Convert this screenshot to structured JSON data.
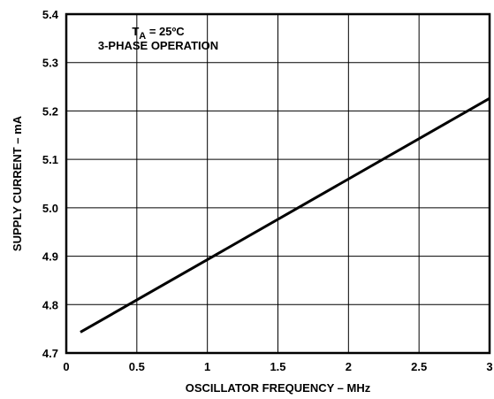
{
  "chart_data": {
    "type": "line",
    "title": "",
    "xlabel": "OSCILLATOR FREQUENCY – MHz",
    "ylabel": "SUPPLY CURRENT – mA",
    "xlim": [
      0,
      3
    ],
    "ylim": [
      4.7,
      5.4
    ],
    "x_ticks": [
      "0",
      "0.5",
      "1",
      "1.5",
      "2",
      "2.5",
      "3"
    ],
    "y_ticks": [
      "4.7",
      "4.8",
      "4.9",
      "5.0",
      "5.1",
      "5.2",
      "5.3",
      "5.4"
    ],
    "grid": true,
    "annotation": {
      "temp_main": "T",
      "temp_sub": "A",
      "temp_value": " = 25ºC",
      "operation": "3-PHASE OPERATION"
    },
    "series": [
      {
        "x": [
          0.1,
          3.0
        ],
        "y": [
          4.743,
          5.226
        ]
      }
    ],
    "colors": {
      "line": "#000000",
      "grid": "#000000",
      "background": "#ffffff"
    }
  }
}
